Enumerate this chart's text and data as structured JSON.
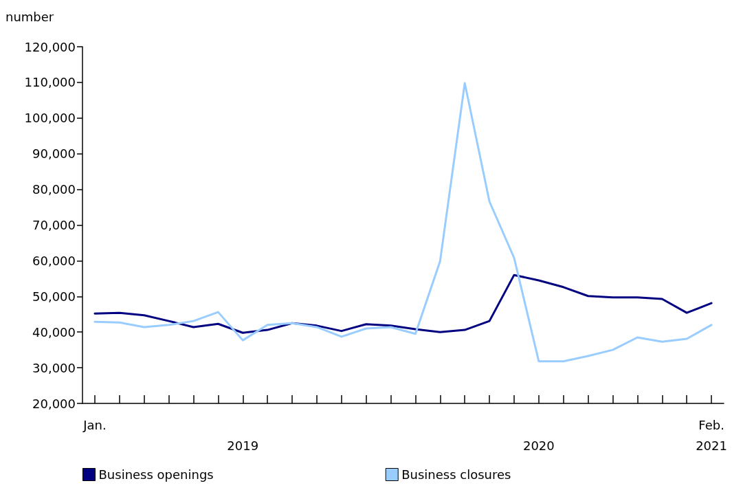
{
  "chart_data": {
    "type": "line",
    "ylabel": "number",
    "categories": [
      "Jan.",
      null,
      null,
      null,
      null,
      null,
      null,
      null,
      null,
      null,
      null,
      null,
      null,
      null,
      null,
      null,
      null,
      null,
      null,
      null,
      null,
      null,
      null,
      null,
      null,
      "Feb."
    ],
    "series": [
      {
        "name": "Business openings",
        "color": "#000080",
        "values": [
          45200,
          45400,
          44700,
          43100,
          41400,
          42300,
          39800,
          40600,
          42500,
          41800,
          40300,
          42200,
          41800,
          40800,
          40000,
          40600,
          43100,
          56000,
          54500,
          52600,
          50100,
          49700,
          49700,
          49300,
          45400,
          48100
        ]
      },
      {
        "name": "Business closures",
        "color": "#99ccff",
        "values": [
          42900,
          42700,
          41400,
          42000,
          43100,
          45600,
          37700,
          42000,
          42500,
          41400,
          38700,
          41000,
          41400,
          39500,
          59900,
          109800,
          76600,
          60800,
          31800,
          31800,
          33300,
          35000,
          38500,
          37300,
          38100,
          42000
        ]
      }
    ],
    "annotations": [
      "2019",
      "2020",
      "2021"
    ],
    "ylim": [
      20000,
      120000
    ],
    "yticks": [
      {
        "value": 20000,
        "label": "20,000"
      },
      {
        "value": 30000,
        "label": "30,000"
      },
      {
        "value": 40000,
        "label": "40,000"
      },
      {
        "value": 50000,
        "label": "50,000"
      },
      {
        "value": 60000,
        "label": "60,000"
      },
      {
        "value": 70000,
        "label": "70,000"
      },
      {
        "value": 80000,
        "label": "80,000"
      },
      {
        "value": 90000,
        "label": "90,000"
      },
      {
        "value": 100000,
        "label": "100,000"
      },
      {
        "value": 110000,
        "label": "110,000"
      },
      {
        "value": 120000,
        "label": "120,000"
      }
    ],
    "grid": false,
    "legend": "bottom",
    "marker": "none",
    "line_style": "solid"
  }
}
